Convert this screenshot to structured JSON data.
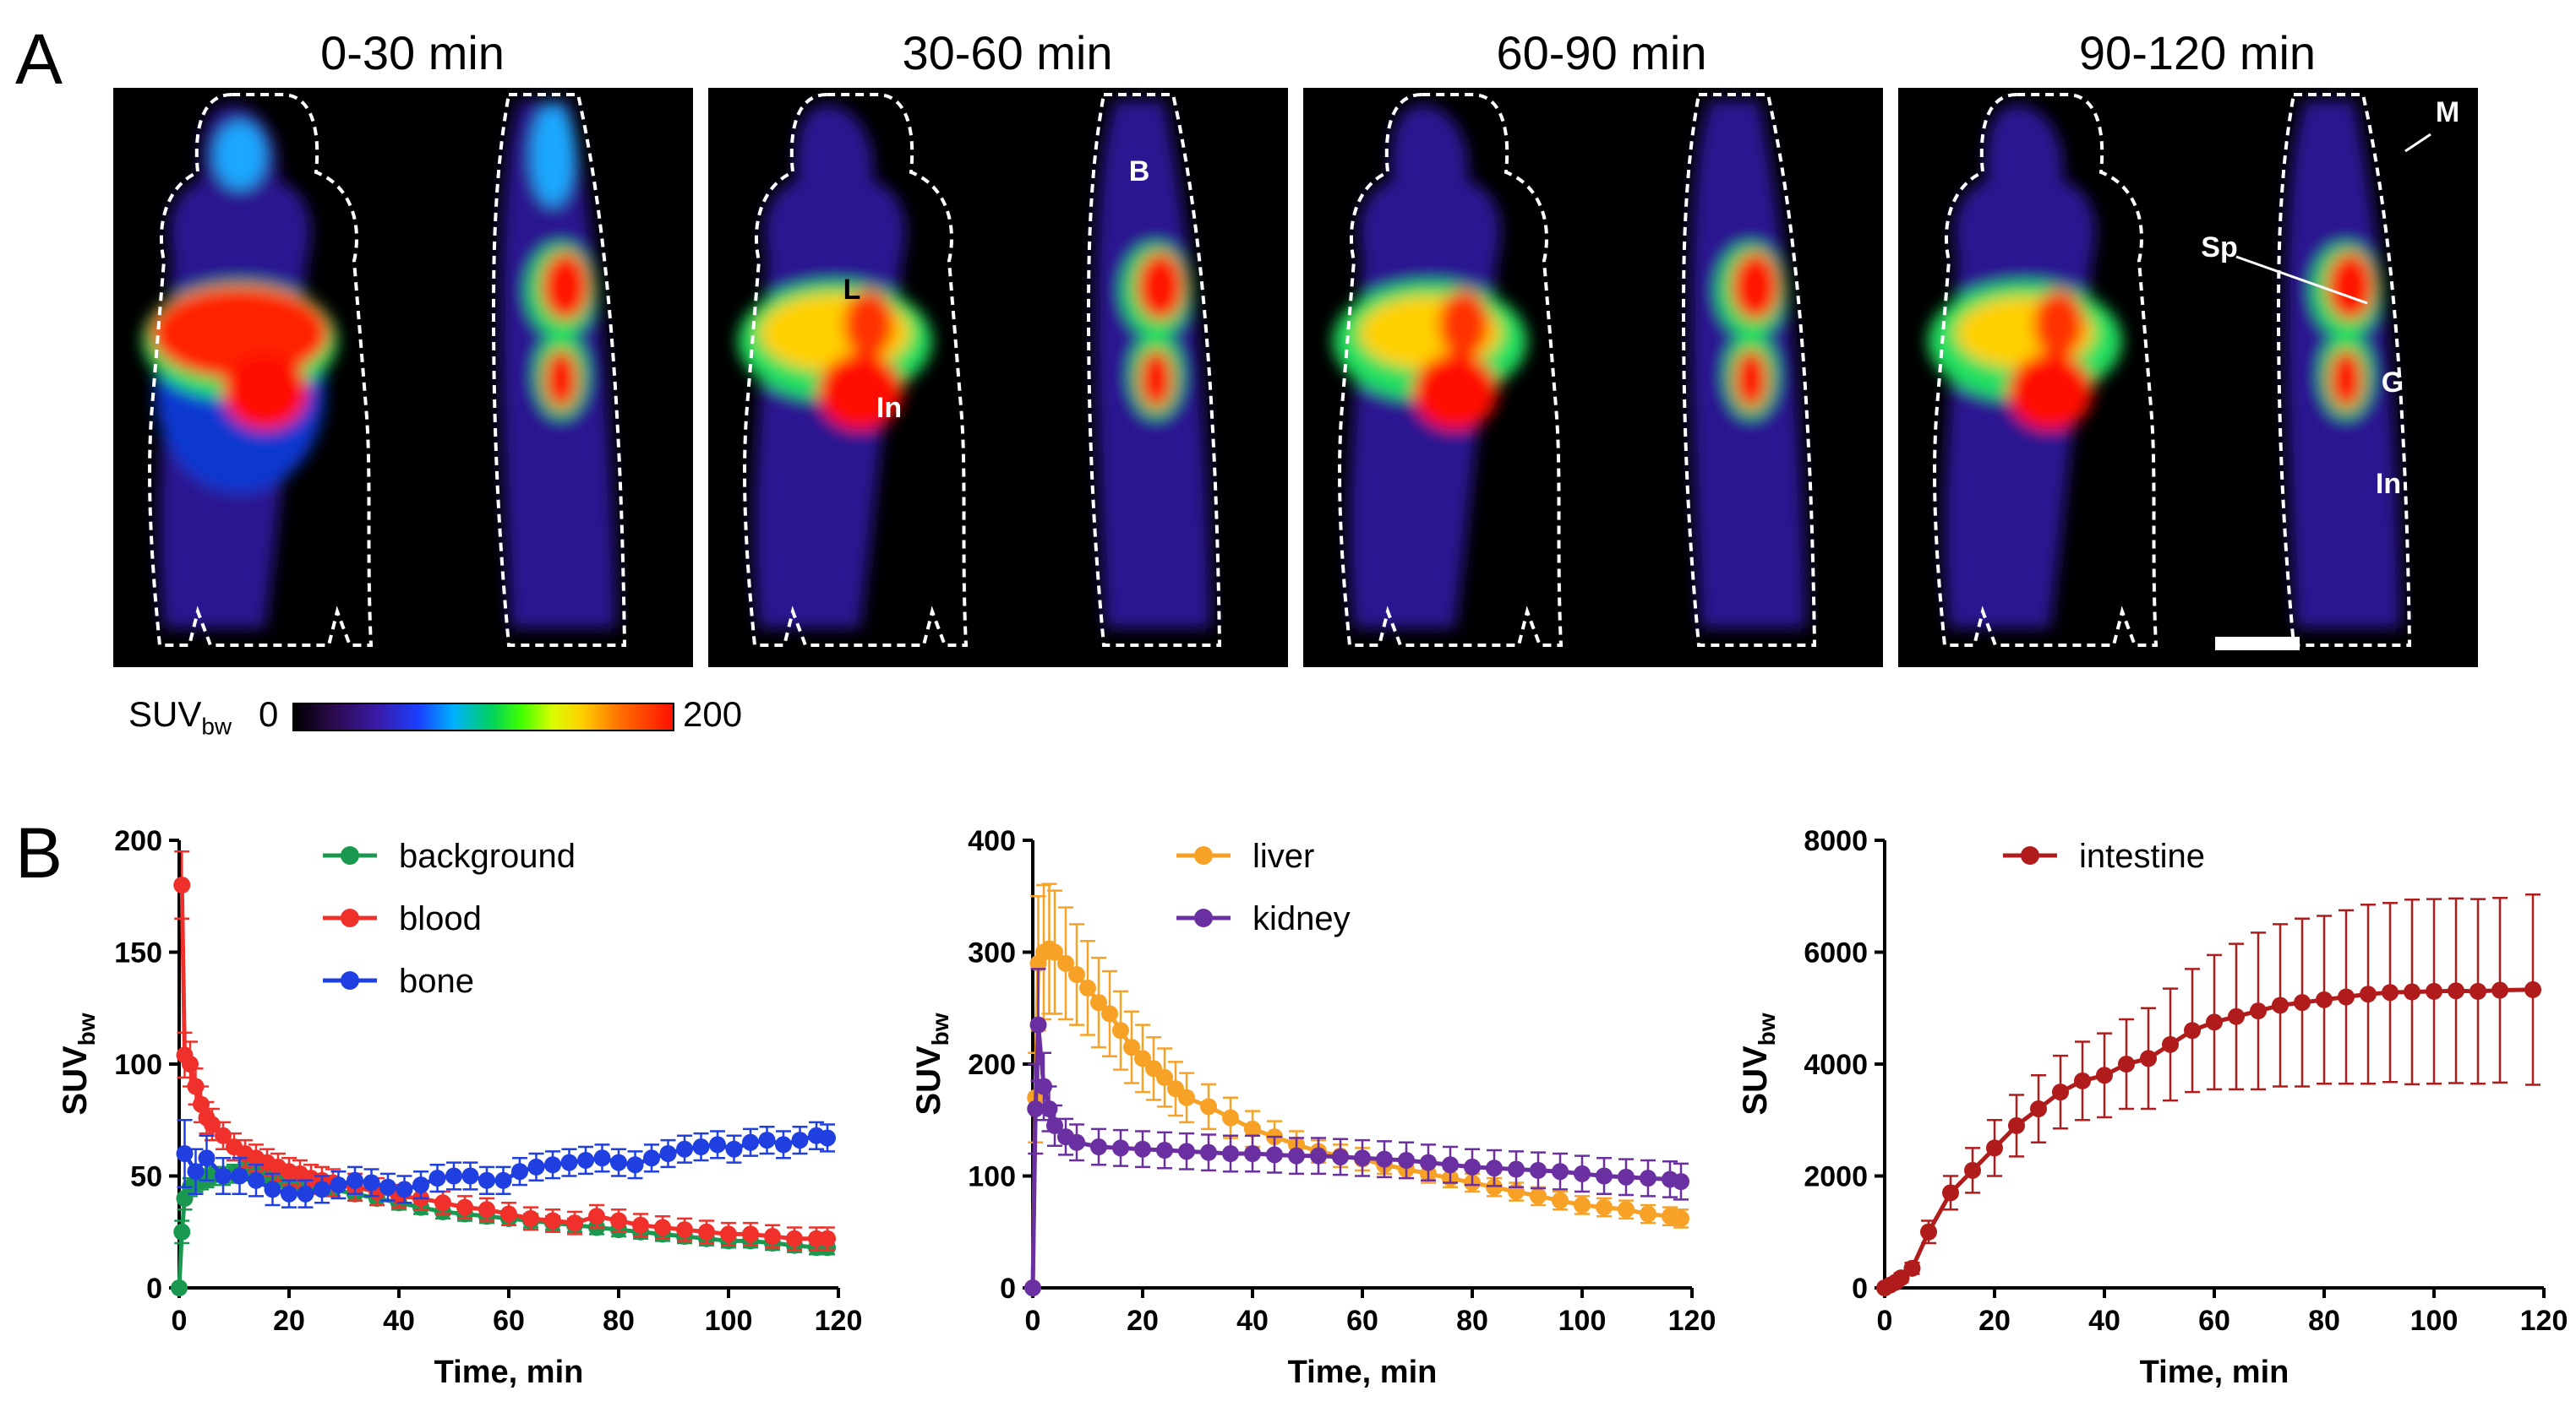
{
  "panel_a": {
    "letter": "A",
    "frames": [
      "0-30 min",
      "30-60 min",
      "60-90 min",
      "90-120 min"
    ],
    "annotations": {
      "B": "B",
      "L": "L",
      "In": "In",
      "M": "M",
      "Sp": "Sp",
      "G": "G"
    },
    "colorbar": {
      "label": "SUV",
      "label_sub": "bw",
      "min": "0",
      "max": "200"
    }
  },
  "panel_b": {
    "letter": "B"
  },
  "chart_data": [
    {
      "type": "line",
      "xlabel": "Time, min",
      "ylabel": "SUV",
      "ylabel_sub": "bw",
      "xlim": [
        0,
        120
      ],
      "ylim": [
        0,
        200
      ],
      "xticks": [
        0,
        20,
        40,
        60,
        80,
        100,
        120
      ],
      "yticks": [
        0,
        50,
        100,
        150,
        200
      ],
      "legend": "top-center",
      "series": [
        {
          "name": "background",
          "color": "#1a9850",
          "x": [
            0,
            0.5,
            1,
            2,
            3,
            4,
            5,
            6,
            8,
            10,
            12,
            14,
            16,
            18,
            20,
            22,
            24,
            26,
            28,
            32,
            36,
            40,
            44,
            48,
            52,
            56,
            60,
            64,
            68,
            72,
            76,
            80,
            84,
            88,
            92,
            96,
            100,
            104,
            108,
            112,
            116,
            118
          ],
          "y": [
            0,
            25,
            40,
            45,
            47,
            48,
            49,
            50,
            50,
            51,
            52,
            51,
            50,
            49,
            48,
            47,
            46,
            45,
            44,
            42,
            40,
            38,
            36,
            34,
            33,
            32,
            31,
            30,
            29,
            28,
            27,
            26,
            25,
            24,
            23,
            22,
            21,
            21,
            20,
            19,
            18,
            18
          ],
          "err": [
            0,
            5,
            5,
            4,
            4,
            4,
            4,
            4,
            4,
            4,
            4,
            4,
            4,
            4,
            4,
            4,
            4,
            3,
            3,
            3,
            3,
            3,
            3,
            3,
            3,
            3,
            3,
            3,
            3,
            3,
            3,
            3,
            3,
            3,
            3,
            3,
            3,
            3,
            3,
            3,
            3,
            3
          ]
        },
        {
          "name": "blood",
          "color": "#f0302a",
          "x": [
            0.5,
            1,
            2,
            3,
            4,
            5,
            6,
            8,
            10,
            12,
            14,
            16,
            18,
            20,
            22,
            24,
            26,
            28,
            32,
            36,
            40,
            44,
            48,
            52,
            56,
            60,
            64,
            68,
            72,
            76,
            80,
            84,
            88,
            92,
            96,
            100,
            104,
            108,
            112,
            116,
            118
          ],
          "y": [
            180,
            104,
            100,
            90,
            82,
            76,
            73,
            68,
            63,
            60,
            58,
            56,
            54,
            52,
            51,
            49,
            48,
            47,
            45,
            43,
            41,
            40,
            38,
            36,
            35,
            33,
            31,
            30,
            29,
            32,
            30,
            28,
            27,
            26,
            25,
            24,
            24,
            23,
            22,
            22,
            22
          ],
          "err": [
            15,
            10,
            10,
            8,
            8,
            7,
            7,
            6,
            6,
            6,
            6,
            6,
            6,
            6,
            6,
            6,
            6,
            6,
            6,
            6,
            5,
            5,
            5,
            5,
            5,
            5,
            5,
            5,
            5,
            5,
            5,
            5,
            5,
            5,
            5,
            5,
            5,
            5,
            5,
            5,
            5
          ]
        },
        {
          "name": "bone",
          "color": "#1f3fe0",
          "x": [
            1,
            3,
            5,
            8,
            11,
            14,
            17,
            20,
            23,
            26,
            29,
            32,
            35,
            38,
            41,
            44,
            47,
            50,
            53,
            56,
            59,
            62,
            65,
            68,
            71,
            74,
            77,
            80,
            83,
            86,
            89,
            92,
            95,
            98,
            101,
            104,
            107,
            110,
            113,
            116,
            118
          ],
          "y": [
            60,
            52,
            58,
            50,
            50,
            48,
            44,
            42,
            42,
            44,
            46,
            48,
            47,
            45,
            44,
            46,
            49,
            50,
            50,
            48,
            48,
            52,
            54,
            55,
            56,
            57,
            58,
            56,
            55,
            58,
            60,
            62,
            63,
            64,
            62,
            65,
            66,
            64,
            66,
            68,
            67
          ],
          "err": [
            15,
            10,
            10,
            8,
            8,
            7,
            7,
            6,
            6,
            6,
            6,
            6,
            6,
            6,
            6,
            6,
            6,
            6,
            6,
            6,
            6,
            6,
            6,
            6,
            6,
            6,
            6,
            6,
            6,
            6,
            6,
            6,
            6,
            6,
            6,
            6,
            6,
            6,
            6,
            6,
            6
          ]
        }
      ]
    },
    {
      "type": "line",
      "xlabel": "Time, min",
      "ylabel": "SUV",
      "ylabel_sub": "bw",
      "xlim": [
        0,
        120
      ],
      "ylim": [
        0,
        400
      ],
      "xticks": [
        0,
        20,
        40,
        60,
        80,
        100,
        120
      ],
      "yticks": [
        0,
        100,
        200,
        300,
        400
      ],
      "legend": "top-center",
      "series": [
        {
          "name": "liver",
          "color": "#f7a226",
          "x": [
            0,
            0.5,
            1,
            2,
            3,
            4,
            6,
            8,
            10,
            12,
            14,
            16,
            18,
            20,
            22,
            24,
            26,
            28,
            32,
            36,
            40,
            44,
            48,
            52,
            56,
            60,
            64,
            68,
            72,
            76,
            80,
            84,
            88,
            92,
            96,
            100,
            104,
            108,
            112,
            116,
            118
          ],
          "y": [
            0,
            170,
            290,
            300,
            303,
            300,
            290,
            280,
            268,
            255,
            245,
            230,
            215,
            205,
            196,
            188,
            178,
            170,
            162,
            152,
            142,
            135,
            128,
            122,
            118,
            115,
            110,
            106,
            102,
            98,
            94,
            90,
            86,
            82,
            78,
            74,
            72,
            70,
            66,
            64,
            62
          ],
          "err": [
            0,
            40,
            60,
            60,
            58,
            55,
            50,
            45,
            42,
            40,
            38,
            35,
            32,
            30,
            28,
            26,
            24,
            22,
            20,
            18,
            16,
            14,
            12,
            10,
            10,
            10,
            8,
            8,
            8,
            8,
            8,
            8,
            8,
            8,
            8,
            8,
            8,
            8,
            8,
            8,
            8
          ]
        },
        {
          "name": "kidney",
          "color": "#6a2fa0",
          "x": [
            0,
            0.5,
            1,
            2,
            3,
            4,
            6,
            8,
            12,
            16,
            20,
            24,
            28,
            32,
            36,
            40,
            44,
            48,
            52,
            56,
            60,
            64,
            68,
            72,
            76,
            80,
            84,
            88,
            92,
            96,
            100,
            104,
            108,
            112,
            116,
            118
          ],
          "y": [
            0,
            160,
            235,
            180,
            160,
            145,
            135,
            130,
            126,
            125,
            124,
            123,
            122,
            121,
            120,
            120,
            119,
            118,
            118,
            117,
            116,
            115,
            114,
            112,
            110,
            108,
            107,
            106,
            105,
            104,
            102,
            100,
            99,
            98,
            97,
            95
          ],
          "err": [
            0,
            40,
            50,
            30,
            20,
            18,
            16,
            16,
            16,
            16,
            16,
            16,
            16,
            16,
            16,
            16,
            16,
            16,
            16,
            16,
            16,
            16,
            16,
            16,
            16,
            16,
            16,
            16,
            16,
            16,
            16,
            16,
            16,
            16,
            16,
            16
          ]
        }
      ]
    },
    {
      "type": "line",
      "xlabel": "Time, min",
      "ylabel": "SUV",
      "ylabel_sub": "bw",
      "xlim": [
        0,
        120
      ],
      "ylim": [
        0,
        8000
      ],
      "xticks": [
        0,
        20,
        40,
        60,
        80,
        100,
        120
      ],
      "yticks": [
        0,
        2000,
        4000,
        6000,
        8000
      ],
      "legend": "top-center",
      "series": [
        {
          "name": "intestine",
          "color": "#b01c1c",
          "x": [
            0,
            1,
            2,
            3,
            5,
            8,
            12,
            16,
            20,
            24,
            28,
            32,
            36,
            40,
            44,
            48,
            52,
            56,
            60,
            64,
            68,
            72,
            76,
            80,
            84,
            88,
            92,
            96,
            100,
            104,
            108,
            112,
            118
          ],
          "y": [
            0,
            50,
            100,
            180,
            350,
            1000,
            1700,
            2100,
            2500,
            2900,
            3200,
            3500,
            3700,
            3800,
            4000,
            4100,
            4350,
            4600,
            4750,
            4850,
            4950,
            5050,
            5100,
            5150,
            5200,
            5250,
            5280,
            5290,
            5300,
            5310,
            5300,
            5320,
            5330
          ],
          "err": [
            0,
            30,
            60,
            80,
            100,
            200,
            300,
            400,
            500,
            550,
            600,
            650,
            700,
            750,
            800,
            900,
            1000,
            1100,
            1200,
            1300,
            1400,
            1450,
            1500,
            1500,
            1550,
            1600,
            1600,
            1650,
            1650,
            1650,
            1650,
            1650,
            1700
          ]
        }
      ]
    }
  ]
}
